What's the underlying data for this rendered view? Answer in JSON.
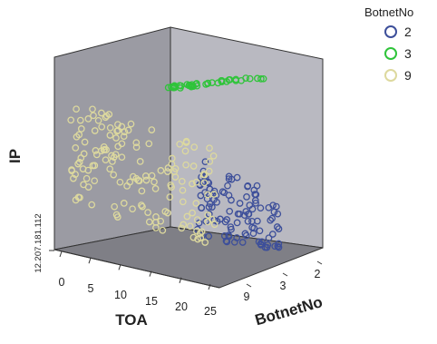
{
  "chart_data": {
    "type": "scatter",
    "projection": "3d",
    "title": "",
    "xlabel": "TOA",
    "ylabel": "IP",
    "zlabel": "BotnetNo",
    "x_ticks": [
      "0",
      "5",
      "10",
      "15",
      "20",
      "25"
    ],
    "xlim": [
      0,
      25
    ],
    "z_ticks": [
      "9",
      "3",
      "2"
    ],
    "y_ticks": [
      "12.207.181.112"
    ],
    "ylim": [
      0,
      1
    ],
    "legend": {
      "title": "BotnetNo",
      "placement": "top-right"
    },
    "series": [
      {
        "name": "2",
        "color": "#3d4f9a",
        "cluster": {
          "x_range": [
            14,
            25
          ],
          "y_range": [
            0.05,
            0.42
          ],
          "count": 110,
          "seed": 11
        }
      },
      {
        "name": "3",
        "color": "#2fc43a",
        "cluster": {
          "x_range": [
            11,
            24
          ],
          "y_range": [
            0.76,
            0.86
          ],
          "count": 42,
          "seed": 23
        }
      },
      {
        "name": "9",
        "color": "#ddd99e",
        "cluster": {
          "x_range": [
            0,
            20
          ],
          "y_range": [
            0.22,
            0.7
          ],
          "count": 150,
          "seed": 37
        }
      }
    ]
  }
}
